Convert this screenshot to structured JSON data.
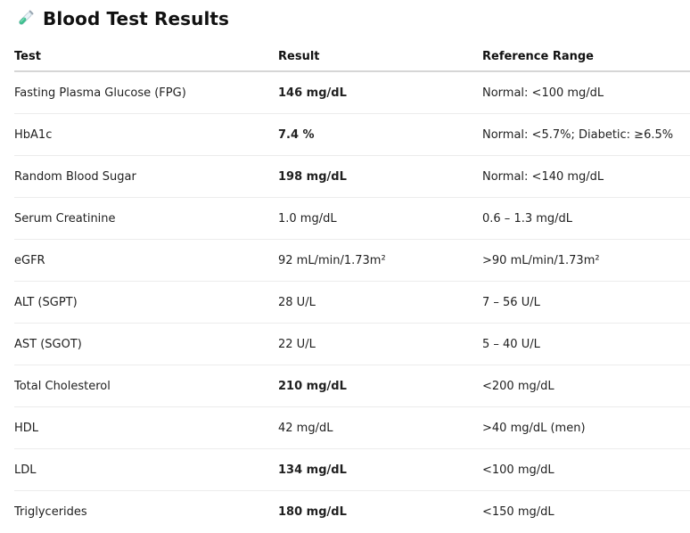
{
  "header": {
    "title": "Blood Test Results",
    "icon": "test-tube-icon"
  },
  "table": {
    "columns": [
      "Test",
      "Result",
      "Reference Range"
    ],
    "rows": [
      {
        "test": "Fasting Plasma Glucose (FPG)",
        "result": "146 mg/dL",
        "reference": "Normal: <100 mg/dL",
        "flagged": true
      },
      {
        "test": "HbA1c",
        "result": "7.4 %",
        "reference": "Normal: <5.7%; Diabetic: ≥6.5%",
        "flagged": true
      },
      {
        "test": "Random Blood Sugar",
        "result": "198 mg/dL",
        "reference": "Normal: <140 mg/dL",
        "flagged": true
      },
      {
        "test": "Serum Creatinine",
        "result": "1.0 mg/dL",
        "reference": "0.6 – 1.3 mg/dL",
        "flagged": false
      },
      {
        "test": "eGFR",
        "result": "92 mL/min/1.73m²",
        "reference": ">90 mL/min/1.73m²",
        "flagged": false
      },
      {
        "test": "ALT (SGPT)",
        "result": "28 U/L",
        "reference": "7 – 56 U/L",
        "flagged": false
      },
      {
        "test": "AST (SGOT)",
        "result": "22 U/L",
        "reference": "5 – 40 U/L",
        "flagged": false
      },
      {
        "test": "Total Cholesterol",
        "result": "210 mg/dL",
        "reference": "<200 mg/dL",
        "flagged": true
      },
      {
        "test": "HDL",
        "result": "42 mg/dL",
        "reference": ">40 mg/dL (men)",
        "flagged": false
      },
      {
        "test": "LDL",
        "result": "134 mg/dL",
        "reference": "<100 mg/dL",
        "flagged": true
      },
      {
        "test": "Triglycerides",
        "result": "180 mg/dL",
        "reference": "<150 mg/dL",
        "flagged": true
      }
    ]
  }
}
